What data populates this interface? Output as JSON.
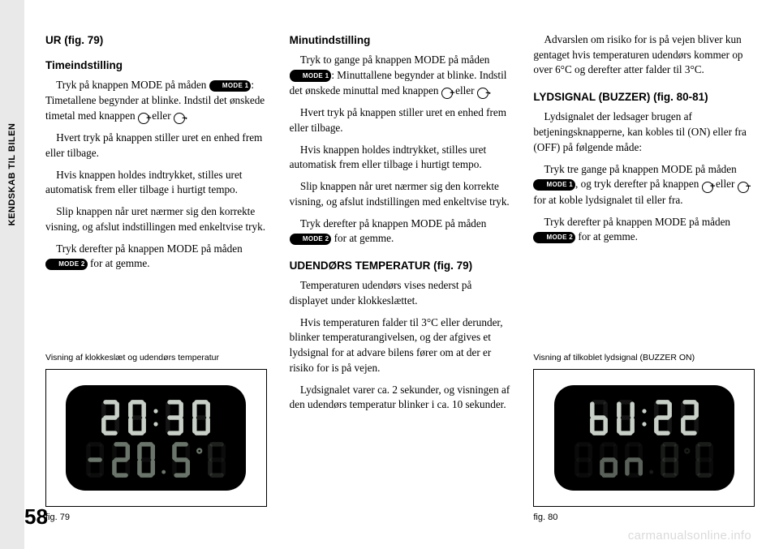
{
  "sidebar_label": "KENDSKAB TIL BILEN",
  "page_number": "58",
  "watermark": "carmanualsonline.info",
  "col1": {
    "h1": "UR (fig. 79)",
    "h2": "Timeindstilling",
    "p1a": "Tryk på knappen MODE på måden ",
    "p1b": ": Timetallene begynder at blinke. Indstil det ønskede timetal med knappen ",
    "p1c": " eller ",
    "p1d": ".",
    "p2": "Hvert tryk på knappen stiller uret en enhed frem eller tilbage.",
    "p3": "Hvis knappen holdes indtrykket, stilles uret automatisk frem eller tilbage i hurtigt tempo.",
    "p4": "Slip knappen når uret nærmer sig den korrekte visning, og afslut indstillingen med enkeltvise tryk.",
    "p5a": "Tryk derefter på knappen MODE på måden ",
    "p5b": " for at gemme.",
    "caption": "Visning af klokkeslæt og udendørs temperatur",
    "fig": "fig. 79"
  },
  "col2": {
    "h1": "Minutindstilling",
    "p1a": "Tryk to gange på knappen MODE på måden ",
    "p1b": ": Minuttallene begynder at blinke. Indstil det ønskede minuttal med knappen ",
    "p1c": " eller ",
    "p1d": ".",
    "p2": "Hvert tryk på knappen stiller uret en enhed frem eller tilbage.",
    "p3": "Hvis knappen holdes indtrykket, stilles uret automatisk frem eller tilbage i hurtigt tempo.",
    "p4": "Slip knappen når uret nærmer sig den korrekte visning, og afslut indstillingen med enkeltvise tryk.",
    "p5a": "Tryk derefter på knappen MODE på måden ",
    "p5b": " for at gemme.",
    "h2": "UDENDØRS TEMPERATUR (fig. 79)",
    "p6": "Temperaturen udendørs vises nederst på displayet under klokkeslættet.",
    "p7": "Hvis temperaturen falder til 3°C eller derunder, blinker temperaturangivelsen, og der afgives et lydsignal for at advare bilens fører om at der er risiko for is på vejen.",
    "p8": "Lydsignalet varer ca. 2 sekunder, og visningen af den udendørs temperatur blinker i ca. 10 sekunder."
  },
  "col3": {
    "p1": "Advarslen om risiko for is på vejen bliver kun gentaget hvis temperaturen udendørs kommer op over 6°C og derefter atter falder til 3°C.",
    "h1": "LYDSIGNAL (BUZZER) (fig. 80-81)",
    "p2": "Lydsignalet der ledsager brugen af betjeningsknapperne, kan kobles til (ON) eller fra (OFF) på følgende måde:",
    "p3a": "Tryk tre gange på knappen MODE på måden ",
    "p3b": ", og tryk derefter på knappen ",
    "p3c": " eller ",
    "p3d": " for at koble lydsignalet til eller fra.",
    "p4a": "Tryk derefter på knappen MODE på måden ",
    "p4b": " for at gemme.",
    "caption": "Visning af tilkoblet lydsignal (BUZZER ON)",
    "fig": "fig. 80"
  },
  "mode1": "MODE 1",
  "mode2": "MODE 2",
  "plus": "+",
  "minus": "−",
  "display1": {
    "row1": [
      "2",
      "0",
      "colon",
      "3",
      "0"
    ],
    "row2": [
      "neg",
      "2",
      "0",
      "dot",
      "5",
      "deg",
      "C_dim"
    ],
    "row1_color": "#c7cfc7",
    "row2_color": "#6a746a"
  },
  "display2": {
    "row1": [
      "b",
      "U",
      "colon",
      "2",
      "2"
    ],
    "row2": [
      "blank",
      "o",
      "n",
      "dot_dim",
      "8_dim",
      "deg_dim",
      "C_dim"
    ],
    "row1_color": "#c7cfc7",
    "row2_color": "#5a605a"
  },
  "seg_on_opacity": 1,
  "seg_off_opacity": 0.1,
  "seg_dim_opacity": 0.28
}
